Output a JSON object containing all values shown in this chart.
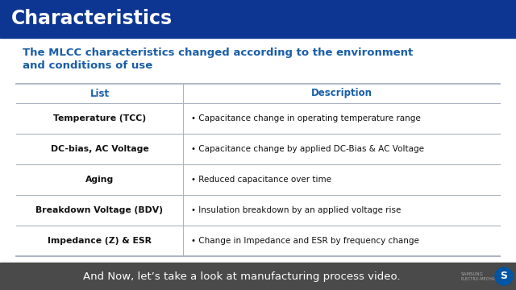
{
  "title": "Characteristics",
  "title_bg": "#0d3692",
  "title_color": "#ffffff",
  "subtitle_line1": "The MLCC characteristics changed according to the environment",
  "subtitle_line2": "and conditions of use",
  "subtitle_color": "#1a5ea8",
  "bg_color": "#ffffff",
  "outer_bg": "#e8e8e8",
  "table_header_list": "List",
  "table_header_desc": "Description",
  "header_color": "#1a5ea8",
  "rows": [
    [
      "Temperature (TCC)",
      "• Capacitance change in operating temperature range"
    ],
    [
      "DC-bias, AC Voltage",
      "• Capacitance change by applied DC-Bias & AC Voltage"
    ],
    [
      "Aging",
      "• Reduced capacitance over time"
    ],
    [
      "Breakdown Voltage (BDV)",
      "• Insulation breakdown by an applied voltage rise"
    ],
    [
      "Impedance (Z) & ESR",
      "• Change in Impedance and ESR by frequency change"
    ]
  ],
  "footer_text": "And Now, let’s take a look at manufacturing process video.",
  "footer_bg": "#4a4a4a",
  "footer_color": "#ffffff",
  "col_split": 0.345,
  "line_color": "#aab4c0",
  "samsung_text_color": "#aaaaaa",
  "samsung_circle_color": "#0055a5"
}
